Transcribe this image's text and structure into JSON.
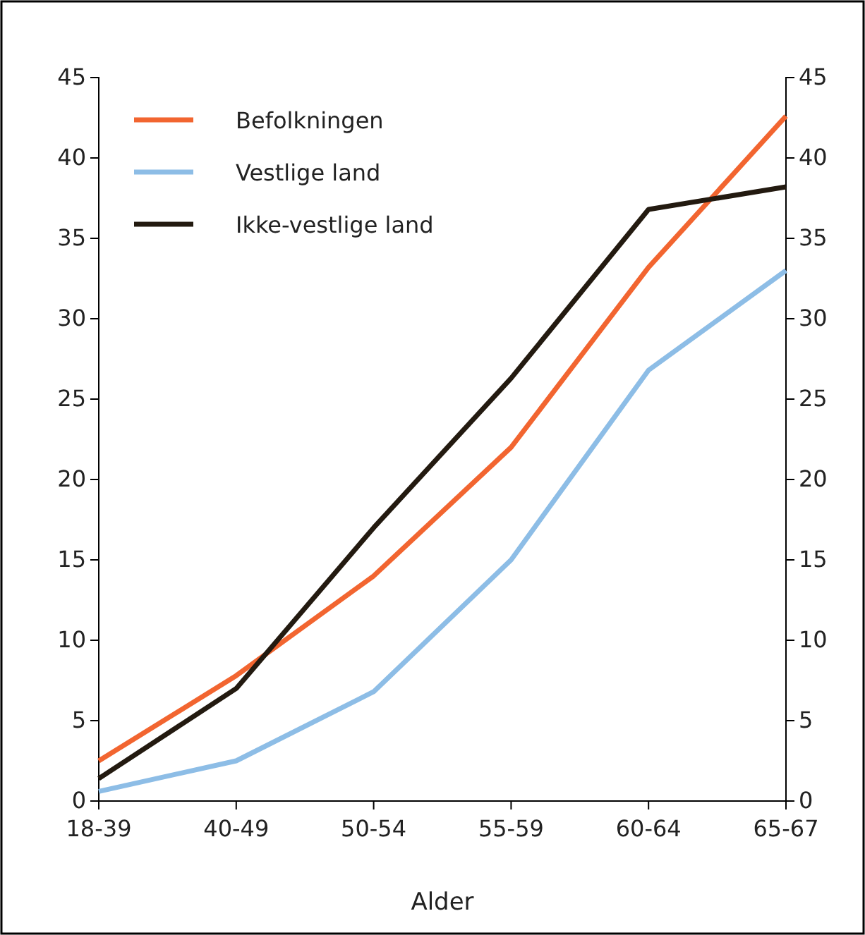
{
  "chart_data": {
    "type": "line",
    "xlabel": "Alder",
    "categories": [
      "18-39",
      "40-49",
      "50-54",
      "55-59",
      "60-64",
      "65-67"
    ],
    "series": [
      {
        "name": "Befolkningen",
        "color": "#f26530",
        "values": [
          2.5,
          7.8,
          14.0,
          22.0,
          33.2,
          42.6
        ]
      },
      {
        "name": "Vestlige land",
        "color": "#8dbde6",
        "values": [
          0.6,
          2.5,
          6.8,
          15.0,
          26.8,
          33.0
        ]
      },
      {
        "name": "Ikke-vestlige land",
        "color": "#231a10",
        "values": [
          1.4,
          7.0,
          17.0,
          26.3,
          36.8,
          38.2
        ]
      }
    ],
    "ylim": [
      0,
      45
    ],
    "yticks": [
      0,
      5,
      10,
      15,
      20,
      25,
      30,
      35,
      40,
      45
    ],
    "y2lim": [
      0,
      45
    ],
    "y2ticks": [
      0,
      5,
      10,
      15,
      20,
      25,
      30,
      35,
      40,
      45
    ],
    "legend": "top left",
    "grid": false,
    "marker": "none",
    "line_style": "solid"
  }
}
